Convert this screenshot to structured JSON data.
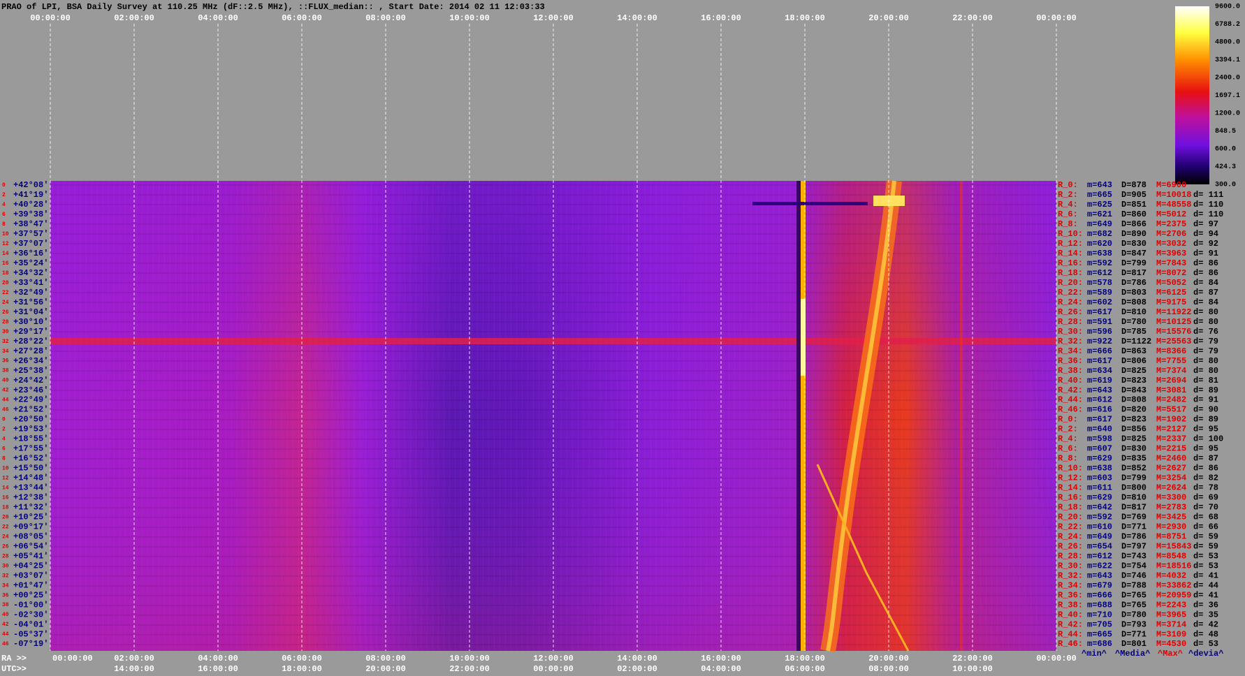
{
  "title": "PRAO of LPI, BSA Daily Survey at 110.25 MHz (dF::2.5 MHz), ::FLUX_median:: , Start Date: 2014 02 11 12:03:33",
  "top_axis": [
    "00:00:00",
    "02:00:00",
    "04:00:00",
    "06:00:00",
    "08:00:00",
    "10:00:00",
    "12:00:00",
    "14:00:00",
    "16:00:00",
    "18:00:00",
    "20:00:00",
    "22:00:00",
    "00:00:00"
  ],
  "ra_prefix": "RA >>",
  "ra_axis": [
    "00:00:00",
    "02:00:00",
    "04:00:00",
    "06:00:00",
    "08:00:00",
    "10:00:00",
    "12:00:00",
    "14:00:00",
    "16:00:00",
    "18:00:00",
    "20:00:00",
    "22:00:00",
    "00:00:00"
  ],
  "utc_prefix": "UTC>>",
  "utc_axis": [
    "14:00:00",
    "16:00:00",
    "18:00:00",
    "20:00:00",
    "22:00:00",
    "00:00:00",
    "02:00:00",
    "04:00:00",
    "06:00:00",
    "08:00:00",
    "10:00:00"
  ],
  "colorbar": [
    "9600.0",
    "6788.2",
    "4800.0",
    "3394.1",
    "2400.0",
    "1697.1",
    "1200.0",
    "848.5",
    "600.0",
    "424.3",
    "300.0"
  ],
  "footer": [
    "^min^",
    "^Media^",
    "^Max^",
    "^devia^"
  ],
  "rows": [
    [
      "0",
      "+42°08'",
      "R_0:",
      "m=643",
      "D=878",
      "M=6900"
    ],
    [
      "2",
      "+41°19'",
      "R_2:",
      "m=665",
      "D=905",
      "M=10018",
      "d= 111"
    ],
    [
      "4",
      "+40°28'",
      "R_4:",
      "m=625",
      "D=851",
      "M=48558",
      "d= 110"
    ],
    [
      "6",
      "+39°38'",
      "R_6:",
      "m=621",
      "D=860",
      "M=5012",
      "d= 110"
    ],
    [
      "8",
      "+38°47'",
      "R_8:",
      "m=649",
      "D=866",
      "M=2375",
      "d= 97"
    ],
    [
      "10",
      "+37°57'",
      "R_10:",
      "m=682",
      "D=890",
      "M=2706",
      "d= 94"
    ],
    [
      "12",
      "+37°07'",
      "R_12:",
      "m=620",
      "D=830",
      "M=3032",
      "d= 92"
    ],
    [
      "14",
      "+36°16'",
      "R_14:",
      "m=638",
      "D=847",
      "M=3963",
      "d= 91"
    ],
    [
      "16",
      "+35°24'",
      "R_16:",
      "m=592",
      "D=799",
      "M=7843",
      "d= 86"
    ],
    [
      "18",
      "+34°32'",
      "R_18:",
      "m=612",
      "D=817",
      "M=8072",
      "d= 86"
    ],
    [
      "20",
      "+33°41'",
      "R_20:",
      "m=578",
      "D=786",
      "M=5052",
      "d= 84"
    ],
    [
      "22",
      "+32°49'",
      "R_22:",
      "m=589",
      "D=803",
      "M=6125",
      "d= 87"
    ],
    [
      "24",
      "+31°56'",
      "R_24:",
      "m=602",
      "D=808",
      "M=9175",
      "d= 84"
    ],
    [
      "26",
      "+31°04'",
      "R_26:",
      "m=617",
      "D=810",
      "M=11922",
      "d= 80"
    ],
    [
      "28",
      "+30°10'",
      "R_28:",
      "m=591",
      "D=780",
      "M=10125",
      "d= 80"
    ],
    [
      "30",
      "+29°17'",
      "R_30:",
      "m=596",
      "D=785",
      "M=15576",
      "d= 76"
    ],
    [
      "32",
      "+28°22'",
      "R_32:",
      "m=922",
      "D=1122",
      "M=25563",
      "d= 79"
    ],
    [
      "34",
      "+27°28'",
      "R_34:",
      "m=666",
      "D=863",
      "M=8366",
      "d= 79"
    ],
    [
      "36",
      "+26°34'",
      "R_36:",
      "m=617",
      "D=806",
      "M=7755",
      "d= 80"
    ],
    [
      "38",
      "+25°38'",
      "R_38:",
      "m=634",
      "D=825",
      "M=7374",
      "d= 80"
    ],
    [
      "40",
      "+24°42'",
      "R_40:",
      "m=619",
      "D=823",
      "M=2694",
      "d= 81"
    ],
    [
      "42",
      "+23°46'",
      "R_42:",
      "m=643",
      "D=843",
      "M=3081",
      "d= 89"
    ],
    [
      "44",
      "+22°49'",
      "R_44:",
      "m=612",
      "D=808",
      "M=2482",
      "d= 91"
    ],
    [
      "46",
      "+21°52'",
      "R_46:",
      "m=616",
      "D=820",
      "M=5517",
      "d= 90"
    ],
    [
      "0",
      "+20°50'",
      "R_0:",
      "m=617",
      "D=823",
      "M=1902",
      "d= 89"
    ],
    [
      "2",
      "+19°53'",
      "R_2:",
      "m=640",
      "D=856",
      "M=2127",
      "d= 95"
    ],
    [
      "4",
      "+18°55'",
      "R_4:",
      "m=598",
      "D=825",
      "M=2337",
      "d= 100"
    ],
    [
      "6",
      "+17°55'",
      "R_6:",
      "m=607",
      "D=830",
      "M=2215",
      "d= 95"
    ],
    [
      "8",
      "+16°52'",
      "R_8:",
      "m=629",
      "D=835",
      "M=2460",
      "d= 87"
    ],
    [
      "10",
      "+15°50'",
      "R_10:",
      "m=638",
      "D=852",
      "M=2627",
      "d= 86"
    ],
    [
      "12",
      "+14°48'",
      "R_12:",
      "m=603",
      "D=799",
      "M=3254",
      "d= 82"
    ],
    [
      "14",
      "+13°44'",
      "R_14:",
      "m=611",
      "D=800",
      "M=2624",
      "d= 78"
    ],
    [
      "16",
      "+12°38'",
      "R_16:",
      "m=629",
      "D=810",
      "M=3300",
      "d= 69"
    ],
    [
      "18",
      "+11°32'",
      "R_18:",
      "m=642",
      "D=817",
      "M=2783",
      "d= 70"
    ],
    [
      "20",
      "+10°25'",
      "R_20:",
      "m=592",
      "D=769",
      "M=3425",
      "d= 68"
    ],
    [
      "22",
      "+09°17'",
      "R_22:",
      "m=610",
      "D=771",
      "M=2930",
      "d= 66"
    ],
    [
      "24",
      "+08°05'",
      "R_24:",
      "m=649",
      "D=786",
      "M=8751",
      "d= 59"
    ],
    [
      "26",
      "+06°54'",
      "R_26:",
      "m=654",
      "D=797",
      "M=15843",
      "d= 59"
    ],
    [
      "28",
      "+05°41'",
      "R_28:",
      "m=612",
      "D=743",
      "M=8548",
      "d= 53"
    ],
    [
      "30",
      "+04°25'",
      "R_30:",
      "m=622",
      "D=754",
      "M=18516",
      "d= 53"
    ],
    [
      "32",
      "+03°07'",
      "R_32:",
      "m=643",
      "D=746",
      "M=4032",
      "d= 41"
    ],
    [
      "34",
      "+01°47'",
      "R_34:",
      "m=679",
      "D=788",
      "M=33862",
      "d= 44"
    ],
    [
      "36",
      "+00°25'",
      "R_36:",
      "m=666",
      "D=765",
      "M=20959",
      "d= 41"
    ],
    [
      "38",
      "-01°00'",
      "R_38:",
      "m=688",
      "D=765",
      "M=2243",
      "d= 36"
    ],
    [
      "40",
      "-02°30'",
      "R_40:",
      "m=710",
      "D=780",
      "M=3965",
      "d= 35"
    ],
    [
      "42",
      "-04°01'",
      "R_42:",
      "m=705",
      "D=793",
      "M=3714",
      "d= 42"
    ],
    [
      "44",
      "-05°37'",
      "R_44:",
      "m=665",
      "D=771",
      "M=3109",
      "d= 48"
    ],
    [
      "46",
      "-07°19'",
      "R_46:",
      "m=686",
      "D=801",
      "M=4530",
      "d= 53"
    ]
  ]
}
